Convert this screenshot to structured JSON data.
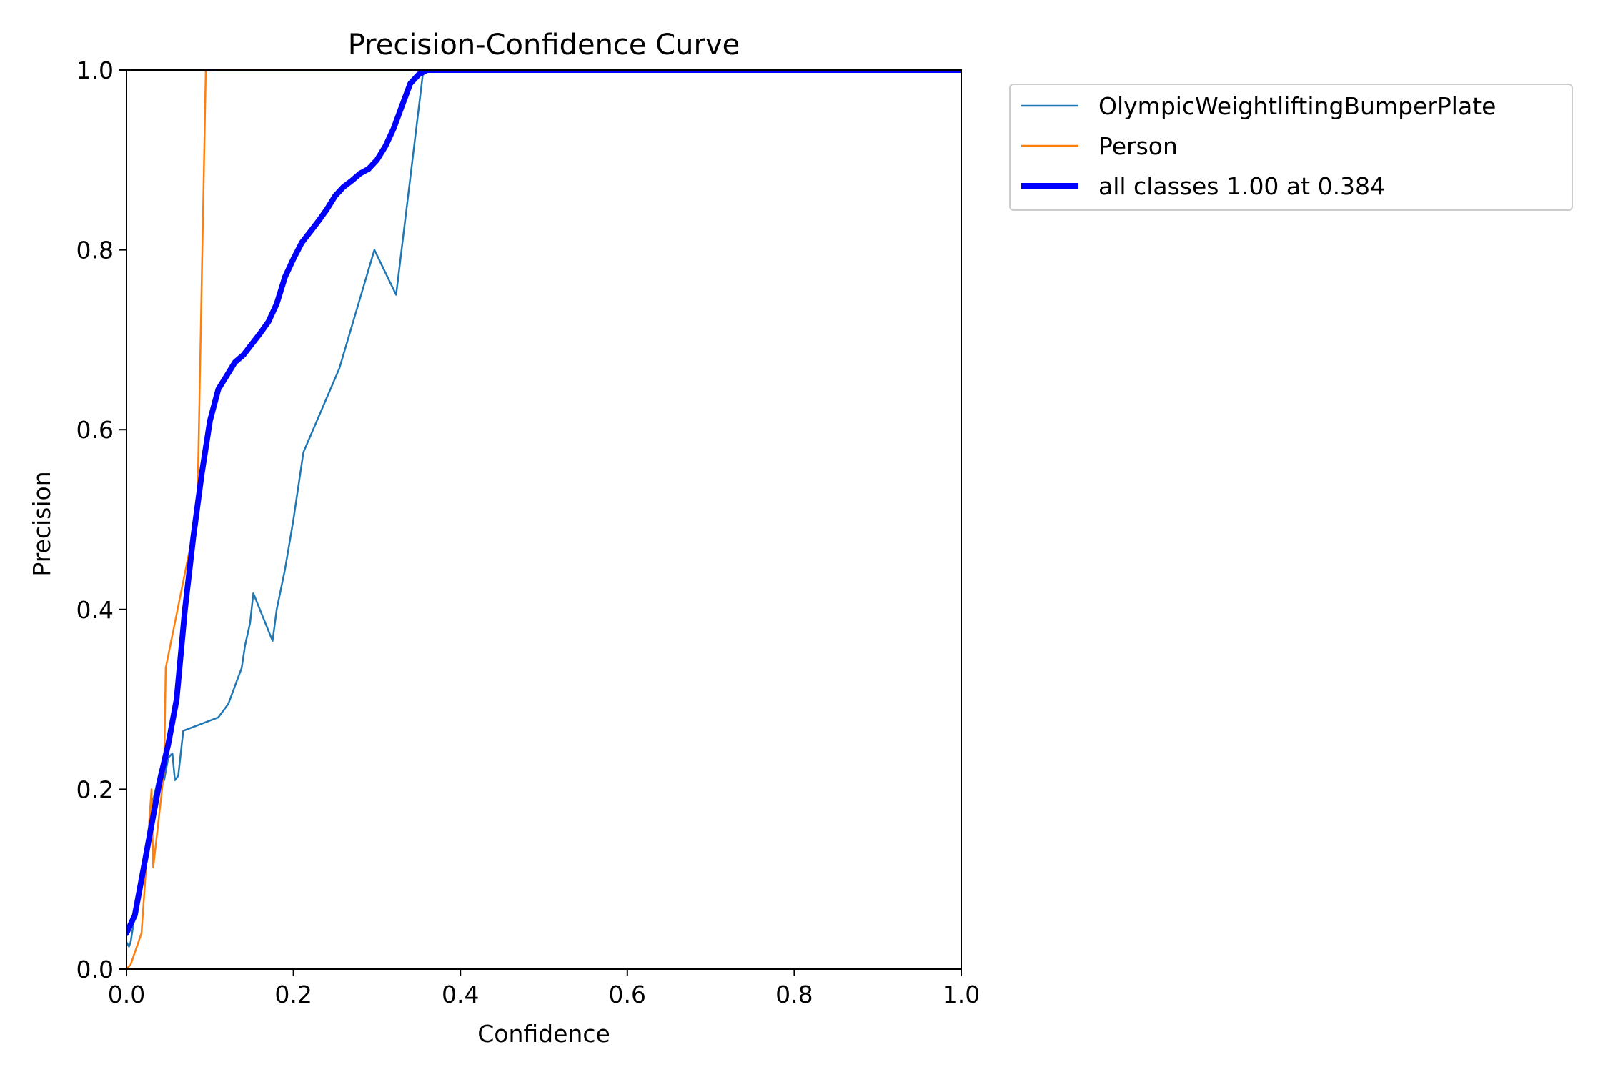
{
  "chart_data": {
    "type": "line",
    "title": "Precision-Confidence Curve",
    "xlabel": "Confidence",
    "ylabel": "Precision",
    "xlim": [
      0,
      1
    ],
    "ylim": [
      0,
      1
    ],
    "xticks": [
      "0.0",
      "0.2",
      "0.4",
      "0.6",
      "0.8",
      "1.0"
    ],
    "yticks": [
      "0.0",
      "0.2",
      "0.4",
      "0.6",
      "0.8",
      "1.0"
    ],
    "grid": false,
    "legend_position": "outside-top-right",
    "series": [
      {
        "name": "OlympicWeightliftingBumperPlate",
        "color": "#1f77b4",
        "x": [
          0,
          0.003,
          0.005,
          0.01,
          0.02,
          0.03,
          0.04,
          0.045,
          0.05,
          0.055,
          0.058,
          0.062,
          0.065,
          0.068,
          0.11,
          0.122,
          0.13,
          0.138,
          0.142,
          0.148,
          0.152,
          0.175,
          0.18,
          0.19,
          0.2,
          0.212,
          0.255,
          0.297,
          0.323,
          0.355,
          0.36,
          0.37,
          1.0
        ],
        "y": [
          0.03,
          0.025,
          0.03,
          0.06,
          0.11,
          0.18,
          0.22,
          0.21,
          0.235,
          0.24,
          0.21,
          0.215,
          0.24,
          0.265,
          0.28,
          0.295,
          0.315,
          0.335,
          0.36,
          0.385,
          0.418,
          0.365,
          0.4,
          0.445,
          0.5,
          0.575,
          0.668,
          0.8,
          0.75,
          0.995,
          1.0,
          1.0,
          1.0
        ]
      },
      {
        "name": "Person",
        "color": "#ff7f0e",
        "x": [
          0,
          0.005,
          0.018,
          0.03,
          0.032,
          0.045,
          0.047,
          0.083,
          0.085,
          0.095,
          0.1,
          1.0
        ],
        "y": [
          0,
          0.005,
          0.04,
          0.2,
          0.113,
          0.22,
          0.335,
          0.5,
          0.52,
          1.0,
          1.0,
          1.0
        ]
      },
      {
        "name": "all classes 1.00 at 0.384",
        "color": "#0000ff",
        "x": [
          0,
          0.01,
          0.02,
          0.03,
          0.04,
          0.05,
          0.06,
          0.07,
          0.08,
          0.09,
          0.1,
          0.11,
          0.12,
          0.13,
          0.14,
          0.15,
          0.16,
          0.17,
          0.18,
          0.19,
          0.2,
          0.21,
          0.22,
          0.23,
          0.24,
          0.25,
          0.26,
          0.27,
          0.28,
          0.29,
          0.3,
          0.31,
          0.32,
          0.33,
          0.34,
          0.35,
          0.36,
          0.37,
          0.38,
          0.39,
          0.4,
          1.0
        ],
        "y": [
          0.04,
          0.06,
          0.11,
          0.16,
          0.21,
          0.25,
          0.3,
          0.4,
          0.48,
          0.55,
          0.61,
          0.645,
          0.66,
          0.675,
          0.683,
          0.695,
          0.707,
          0.72,
          0.74,
          0.77,
          0.79,
          0.808,
          0.82,
          0.832,
          0.845,
          0.86,
          0.87,
          0.877,
          0.885,
          0.89,
          0.9,
          0.915,
          0.935,
          0.96,
          0.985,
          0.995,
          1.0,
          1.0,
          1.0,
          1.0,
          1.0,
          1.0
        ],
        "bold": true
      }
    ]
  }
}
